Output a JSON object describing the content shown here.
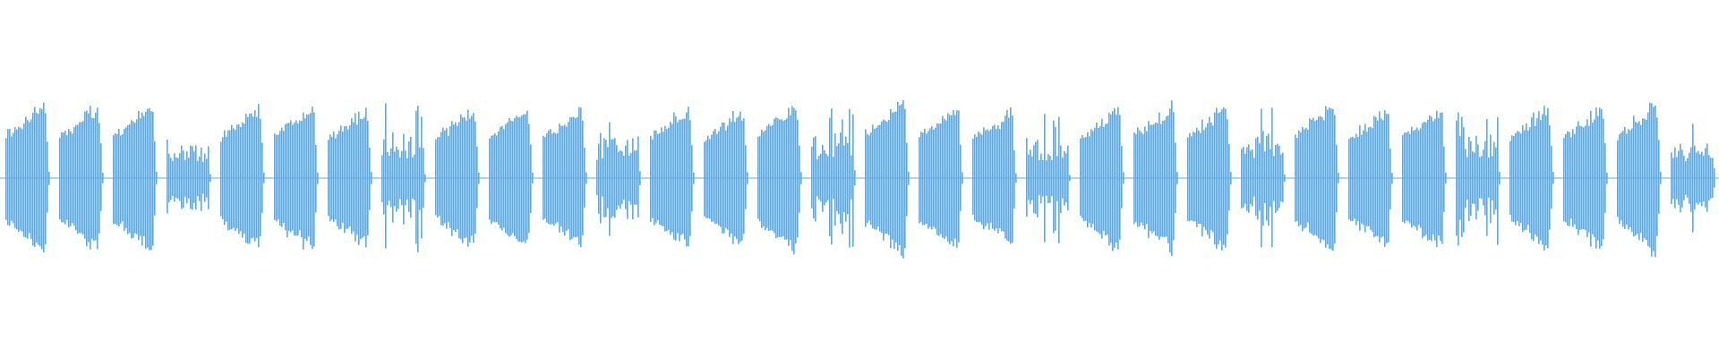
{
  "waveform": {
    "color": "#5DAAE2",
    "background": "#FFFFFF",
    "segments": [
      {
        "type": "burst",
        "amp": 0.66
      },
      {
        "type": "burst",
        "amp": 0.62
      },
      {
        "type": "burst",
        "amp": 0.64
      },
      {
        "type": "spiky",
        "amp": 0.44
      },
      {
        "type": "burst",
        "amp": 0.62
      },
      {
        "type": "burst",
        "amp": 0.64
      },
      {
        "type": "burst",
        "amp": 0.62
      },
      {
        "type": "spiky",
        "amp": 0.6
      },
      {
        "type": "burst",
        "amp": 0.6
      },
      {
        "type": "burst",
        "amp": 0.62
      },
      {
        "type": "burst",
        "amp": 0.6
      },
      {
        "type": "spiky",
        "amp": 0.6
      },
      {
        "type": "burst",
        "amp": 0.62
      },
      {
        "type": "burst",
        "amp": 0.6
      },
      {
        "type": "burst",
        "amp": 0.64
      },
      {
        "type": "spiky",
        "amp": 0.58
      },
      {
        "type": "burst",
        "amp": 0.68
      },
      {
        "type": "burst",
        "amp": 0.62
      },
      {
        "type": "burst",
        "amp": 0.58
      },
      {
        "type": "spiky",
        "amp": 0.5
      },
      {
        "type": "burst",
        "amp": 0.62
      },
      {
        "type": "burst",
        "amp": 0.64
      },
      {
        "type": "burst",
        "amp": 0.64
      },
      {
        "type": "spiky",
        "amp": 0.56
      },
      {
        "type": "burst",
        "amp": 0.64
      },
      {
        "type": "burst",
        "amp": 0.6
      },
      {
        "type": "burst",
        "amp": 0.6
      },
      {
        "type": "spiky",
        "amp": 0.6
      },
      {
        "type": "burst",
        "amp": 0.62
      },
      {
        "type": "burst",
        "amp": 0.62
      },
      {
        "type": "burst",
        "amp": 0.66
      },
      {
        "type": "spiky",
        "amp": 0.5
      }
    ]
  }
}
